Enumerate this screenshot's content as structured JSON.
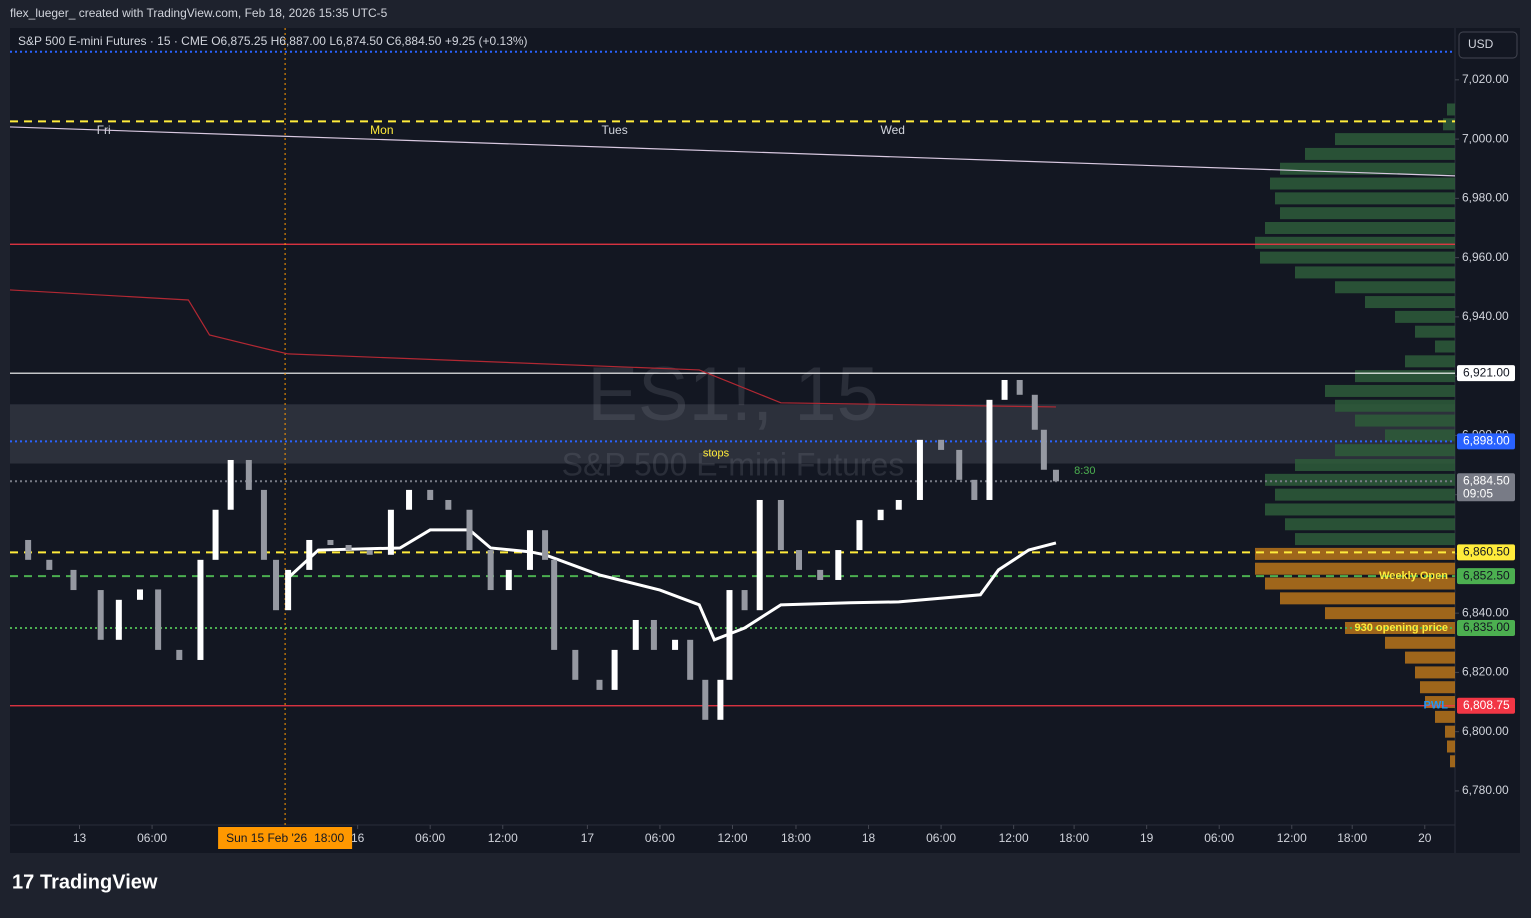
{
  "header": {
    "attribution": "flex_lueger_ created with TradingView.com, Feb 18, 2026 15:35 UTC-5",
    "logo": "TradingView"
  },
  "chart_data": {
    "type": "candlestick",
    "symbol": "S&P 500 E-mini Futures · 15 · CME",
    "ohlc": [
      {
        "key": "O",
        "value": 6875.25,
        "label": "6,875.25"
      },
      {
        "key": "H",
        "value": 6887,
        "label": "6,887.00"
      },
      {
        "key": "L",
        "value": 6874.5,
        "label": "6,874.50"
      },
      {
        "key": "C",
        "value": 6884.5,
        "label": "6,884.50"
      }
    ],
    "change": {
      "value": 9.25,
      "label": "+9.25 (+0.13%)"
    },
    "currency": "USD",
    "watermark": {
      "title": "ES1!, 15",
      "subtitle": "S&P 500 E-mini Futures"
    },
    "ylim": [
      6768.5,
      7037.5
    ],
    "yticks": [
      {
        "value": 6780,
        "label": "6,780.00"
      },
      {
        "value": 6800,
        "label": "6,800.00"
      },
      {
        "value": 6820,
        "label": "6,820.00"
      },
      {
        "value": 6840,
        "label": "6,840.00"
      },
      {
        "value": 6860,
        "label": "6,860.00"
      },
      {
        "value": 6880,
        "label": "6,880.00"
      },
      {
        "value": 6900,
        "label": "6,900.00"
      },
      {
        "value": 6920,
        "label": "6,920.00"
      },
      {
        "value": 6940,
        "label": "6,940.00"
      },
      {
        "value": 6960,
        "label": "6,960.00"
      },
      {
        "value": 6980,
        "label": "6,980.00"
      },
      {
        "value": 7000,
        "label": "7,000.00"
      },
      {
        "value": 7020,
        "label": "7,020.00"
      }
    ],
    "xlim": [
      -23,
      455
    ],
    "xticks": [
      {
        "value": 0,
        "label": "13"
      },
      {
        "value": 24,
        "label": "06:00"
      },
      {
        "value": 92,
        "label": "16"
      },
      {
        "value": 116,
        "label": "06:00"
      },
      {
        "value": 140,
        "label": "12:00"
      },
      {
        "value": 168,
        "label": "17"
      },
      {
        "value": 192,
        "label": "06:00"
      },
      {
        "value": 216,
        "label": "12:00"
      },
      {
        "value": 237,
        "label": "18:00"
      },
      {
        "value": 261,
        "label": "18"
      },
      {
        "value": 285,
        "label": "06:00"
      },
      {
        "value": 309,
        "label": "12:00"
      },
      {
        "value": 329,
        "label": "18:00"
      },
      {
        "value": 353,
        "label": "19"
      },
      {
        "value": 377,
        "label": "06:00"
      },
      {
        "value": 401,
        "label": "12:00"
      },
      {
        "value": 421,
        "label": "18:00"
      },
      {
        "value": 445,
        "label": "20"
      }
    ],
    "crosshair": {
      "value": 68,
      "date": "Sun 15 Feb '26",
      "time": "18:00",
      "color": "#ff9800"
    },
    "day_labels": [
      {
        "value": 8,
        "label": "Fri",
        "color": "#d1d4dc"
      },
      {
        "value": 100,
        "label": "Mon",
        "color": "#ffeb3b"
      },
      {
        "value": 177,
        "label": "Tues",
        "color": "#d1d4dc"
      },
      {
        "value": 269,
        "label": "Wed",
        "color": "#d1d4dc"
      }
    ],
    "price": {
      "up_color": "#ffffff",
      "down_color": "#9598a1",
      "x": [
        -22,
        -17,
        -10,
        -2,
        7,
        13,
        20,
        26,
        33,
        40,
        45,
        50,
        56,
        61,
        65,
        69,
        76,
        83,
        89,
        96,
        103,
        109,
        116,
        122,
        129,
        136,
        142,
        149,
        154,
        157,
        164,
        172,
        177,
        184,
        190,
        197,
        202,
        207,
        212,
        215,
        220,
        225,
        232,
        238,
        245,
        251,
        258,
        265,
        271,
        278,
        285,
        291,
        296,
        301,
        306,
        311,
        316,
        319,
        323
      ],
      "close": [
        6864.7,
        6858,
        6854.6,
        6847.8,
        6831,
        6844.5,
        6848,
        6827.6,
        6824.2,
        6858,
        6874.9,
        6891.7,
        6881.6,
        6858,
        6841,
        6854.6,
        6864.7,
        6863,
        6861.3,
        6859.7,
        6874.9,
        6881.6,
        6878.2,
        6874.9,
        6861.3,
        6847.8,
        6854.6,
        6868,
        6858,
        6827.6,
        6817.5,
        6814.1,
        6827.6,
        6837.7,
        6827.6,
        6831,
        6817.5,
        6804,
        6817.5,
        6847.8,
        6841,
        6878.2,
        6861.3,
        6854.6,
        6851.2,
        6861.3,
        6871.4,
        6874.9,
        6878.2,
        6898.5,
        6895.1,
        6885,
        6878.2,
        6912,
        6918.7,
        6913.7,
        6901.9,
        6888.4,
        6884.5
      ]
    },
    "lines": [
      {
        "color": "#ffffff",
        "width": 3,
        "x": [
          69,
          79,
          106,
          116,
          129,
          136,
          149,
          154,
          172,
          192,
          205,
          210,
          220,
          232,
          255,
          271,
          298,
          304,
          314,
          323
        ],
        "values": [
          6851.9,
          6861.3,
          6862,
          6868.1,
          6868.1,
          6862,
          6860.7,
          6859.7,
          6852.9,
          6847.8,
          6842.8,
          6831,
          6835,
          6842.8,
          6843.5,
          6843.8,
          6846.2,
          6854.6,
          6861.3,
          6863.7
        ]
      },
      {
        "color": "#b22833",
        "width": 1.2,
        "x": [
          -23,
          36,
          43,
          63,
          69,
          205,
          232,
          323
        ],
        "values": [
          6949.1,
          6945.7,
          6933.9,
          6928.9,
          6927.5,
          6922.1,
          6911,
          6909.6
        ]
      },
      {
        "color": "#d8c8e0",
        "width": 1.2,
        "x": [
          -23,
          455
        ],
        "values": [
          7004.1,
          6987.6
        ]
      }
    ],
    "zone": {
      "from": 6890.5,
      "to": 6910.5,
      "label": "stops",
      "text_color": "#ffeb3b"
    },
    "levels": [
      {
        "value": 7029.5,
        "color": "#2962ff",
        "style": "dotted"
      },
      {
        "value": 7006,
        "color": "#ffeb3b",
        "style": "dashed"
      },
      {
        "value": 6964.5,
        "color": "#f23645",
        "style": "solid"
      },
      {
        "value": 6921,
        "label": "6,921.00",
        "color": "#ffffff",
        "text_color": "#131722",
        "style": "solid"
      },
      {
        "value": 6898,
        "label": "6,898.00",
        "color": "#2962ff",
        "text_color": "#ffffff",
        "style": "dotted"
      },
      {
        "value": 6884.5,
        "label": "6,884.50",
        "countdown": "09:05",
        "color": "#787b86",
        "text_color": "#ffffff",
        "style": "dotted"
      },
      {
        "value": 6860.5,
        "label": "6,860.50",
        "color": "#ffeb3b",
        "text_color": "#131722",
        "style": "dashed"
      },
      {
        "value": 6852.5,
        "label": "6,852.50",
        "note": "Weekly Open",
        "note_color": "#ffeb3b",
        "color": "#4caf50",
        "text_color": "#131722",
        "style": "dashed"
      },
      {
        "value": 6835,
        "label": "6,835.00",
        "note": "930 opening price",
        "note_color": "#ffeb3b",
        "color": "#4caf50",
        "text_color": "#131722",
        "style": "dotted"
      },
      {
        "value": 6808.75,
        "label": "6,808.75",
        "note": "PWL",
        "note_color": "#2196f3",
        "color": "#f23645",
        "text_color": "#ffffff",
        "style": "solid"
      }
    ],
    "timer": {
      "value": 6888,
      "x": 329,
      "label": "8:30",
      "color": "#4caf50"
    },
    "profile": {
      "up_color": "#2e5c3a",
      "down_color": "#b8741a",
      "prices": [
        7010,
        7005,
        7000,
        6995,
        6990,
        6985,
        6980,
        6975,
        6970,
        6965,
        6960,
        6955,
        6950,
        6945,
        6940,
        6935,
        6930,
        6925,
        6920,
        6915,
        6910,
        6905,
        6900,
        6895,
        6890,
        6885,
        6880,
        6875,
        6870,
        6865,
        6860,
        6855,
        6850,
        6845,
        6840,
        6835,
        6830,
        6825,
        6820,
        6815,
        6810,
        6805,
        6800,
        6795,
        6790
      ],
      "volumes": [
        8,
        12,
        120,
        150,
        175,
        185,
        180,
        175,
        190,
        200,
        195,
        160,
        120,
        90,
        60,
        40,
        20,
        50,
        100,
        130,
        120,
        100,
        70,
        120,
        160,
        190,
        180,
        190,
        170,
        160,
        200,
        200,
        190,
        175,
        130,
        110,
        70,
        50,
        40,
        35,
        30,
        20,
        10,
        8,
        5
      ],
      "split": 6862
    }
  }
}
